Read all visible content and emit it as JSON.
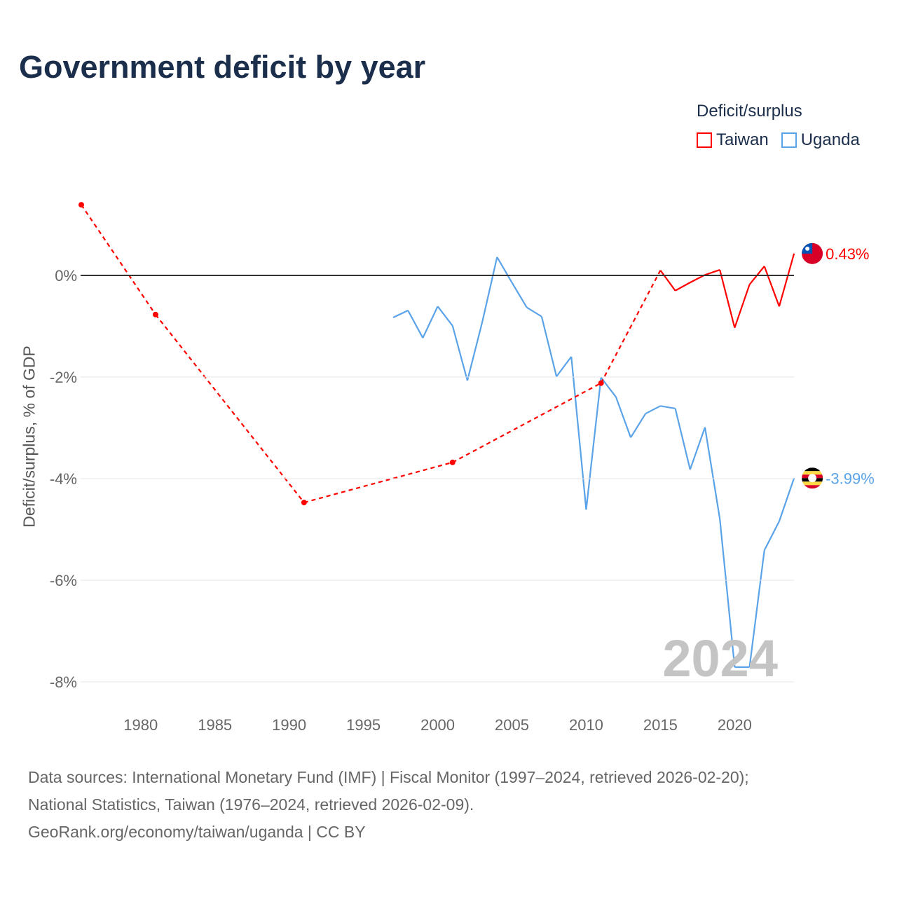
{
  "title": "Government deficit by year",
  "legend": {
    "title": "Deficit/surplus",
    "items": [
      {
        "label": "Taiwan",
        "color": "#ff0000"
      },
      {
        "label": "Uganda",
        "color": "#5ba3e8"
      }
    ]
  },
  "watermark_year": "2024",
  "footer": {
    "line1": "Data sources: International Monetary Fund (IMF) | Fiscal Monitor (1997–2024, retrieved 2026-02-20);",
    "line2": "National Statistics, Taiwan (1976–2024, retrieved 2026-02-09).",
    "line3": "GeoRank.org/economy/taiwan/uganda | CC BY"
  },
  "chart_data": {
    "type": "line",
    "title": "Government deficit by year",
    "xlabel": "",
    "ylabel": "Deficit/surplus, % of GDP",
    "xlim": [
      1976,
      2024
    ],
    "ylim": [
      -8,
      1.4
    ],
    "x_ticks": [
      1980,
      1985,
      1990,
      1995,
      2000,
      2005,
      2010,
      2015,
      2020
    ],
    "y_ticks": [
      {
        "v": 0,
        "label": "0%"
      },
      {
        "v": -2,
        "label": "-2%"
      },
      {
        "v": -4,
        "label": "-4%"
      },
      {
        "v": -6,
        "label": "-6%"
      },
      {
        "v": -8,
        "label": "-8%"
      }
    ],
    "series": [
      {
        "name": "Taiwan",
        "color": "#ff0000",
        "end_label": "0.43%",
        "x": [
          1976,
          1981,
          1991,
          2001,
          2011,
          2015,
          2016,
          2017,
          2018,
          2019,
          2020,
          2021,
          2022,
          2023,
          2024
        ],
        "y": [
          1.39,
          -0.77,
          -4.47,
          -3.68,
          -2.12,
          0.1,
          -0.3,
          -0.14,
          0.01,
          0.11,
          -1.03,
          -0.18,
          0.18,
          -0.61,
          0.43
        ]
      },
      {
        "name": "Uganda",
        "color": "#5ba3e8",
        "end_label": "-3.99%",
        "x": [
          1997,
          1998,
          1999,
          2000,
          2001,
          2002,
          2003,
          2004,
          2005,
          2006,
          2007,
          2008,
          2009,
          2010,
          2011,
          2012,
          2013,
          2014,
          2015,
          2016,
          2017,
          2018,
          2019,
          2020,
          2021,
          2022,
          2023,
          2024
        ],
        "y": [
          -0.83,
          -0.69,
          -1.23,
          -0.61,
          -0.99,
          -2.07,
          -0.92,
          0.36,
          -0.14,
          -0.63,
          -0.81,
          -1.99,
          -1.6,
          -4.61,
          -2.01,
          -2.39,
          -3.19,
          -2.72,
          -2.57,
          -2.62,
          -3.82,
          -2.99,
          -4.79,
          -7.71,
          -7.71,
          -5.41,
          -4.84,
          -3.99
        ]
      }
    ]
  }
}
